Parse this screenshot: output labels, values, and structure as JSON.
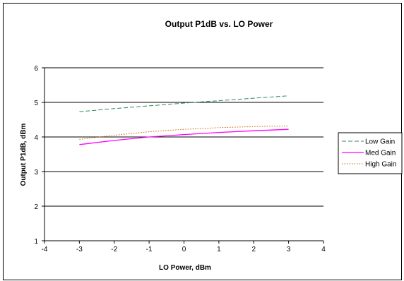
{
  "chart_data": {
    "type": "line",
    "title": "Output P1dB vs. LO Power",
    "xlabel": "LO Power, dBm",
    "ylabel": "Output P1dB, dBm",
    "xlim": [
      -4,
      4
    ],
    "ylim": [
      1,
      6
    ],
    "x_ticks": [
      "-4",
      "-3",
      "-2",
      "-1",
      "0",
      "1",
      "2",
      "3",
      "4"
    ],
    "y_ticks": [
      "1",
      "2",
      "3",
      "4",
      "5",
      "6"
    ],
    "grid": "horizontal",
    "legend_position": "right",
    "x": [
      -3,
      -2,
      -1,
      0,
      1,
      2,
      3
    ],
    "series": [
      {
        "name": "Low Gain",
        "color": "#2e8b57",
        "dash": "dashed",
        "values": [
          4.73,
          4.82,
          4.9,
          4.98,
          5.05,
          5.12,
          5.19
        ]
      },
      {
        "name": "Med Gain",
        "color": "#ff00ff",
        "dash": "solid",
        "values": [
          3.78,
          3.9,
          4.0,
          4.07,
          4.13,
          4.18,
          4.22
        ]
      },
      {
        "name": "High Gain",
        "color": "#cc6600",
        "dash": "dotted",
        "values": [
          3.93,
          4.05,
          4.15,
          4.22,
          4.27,
          4.3,
          4.32
        ]
      }
    ]
  }
}
